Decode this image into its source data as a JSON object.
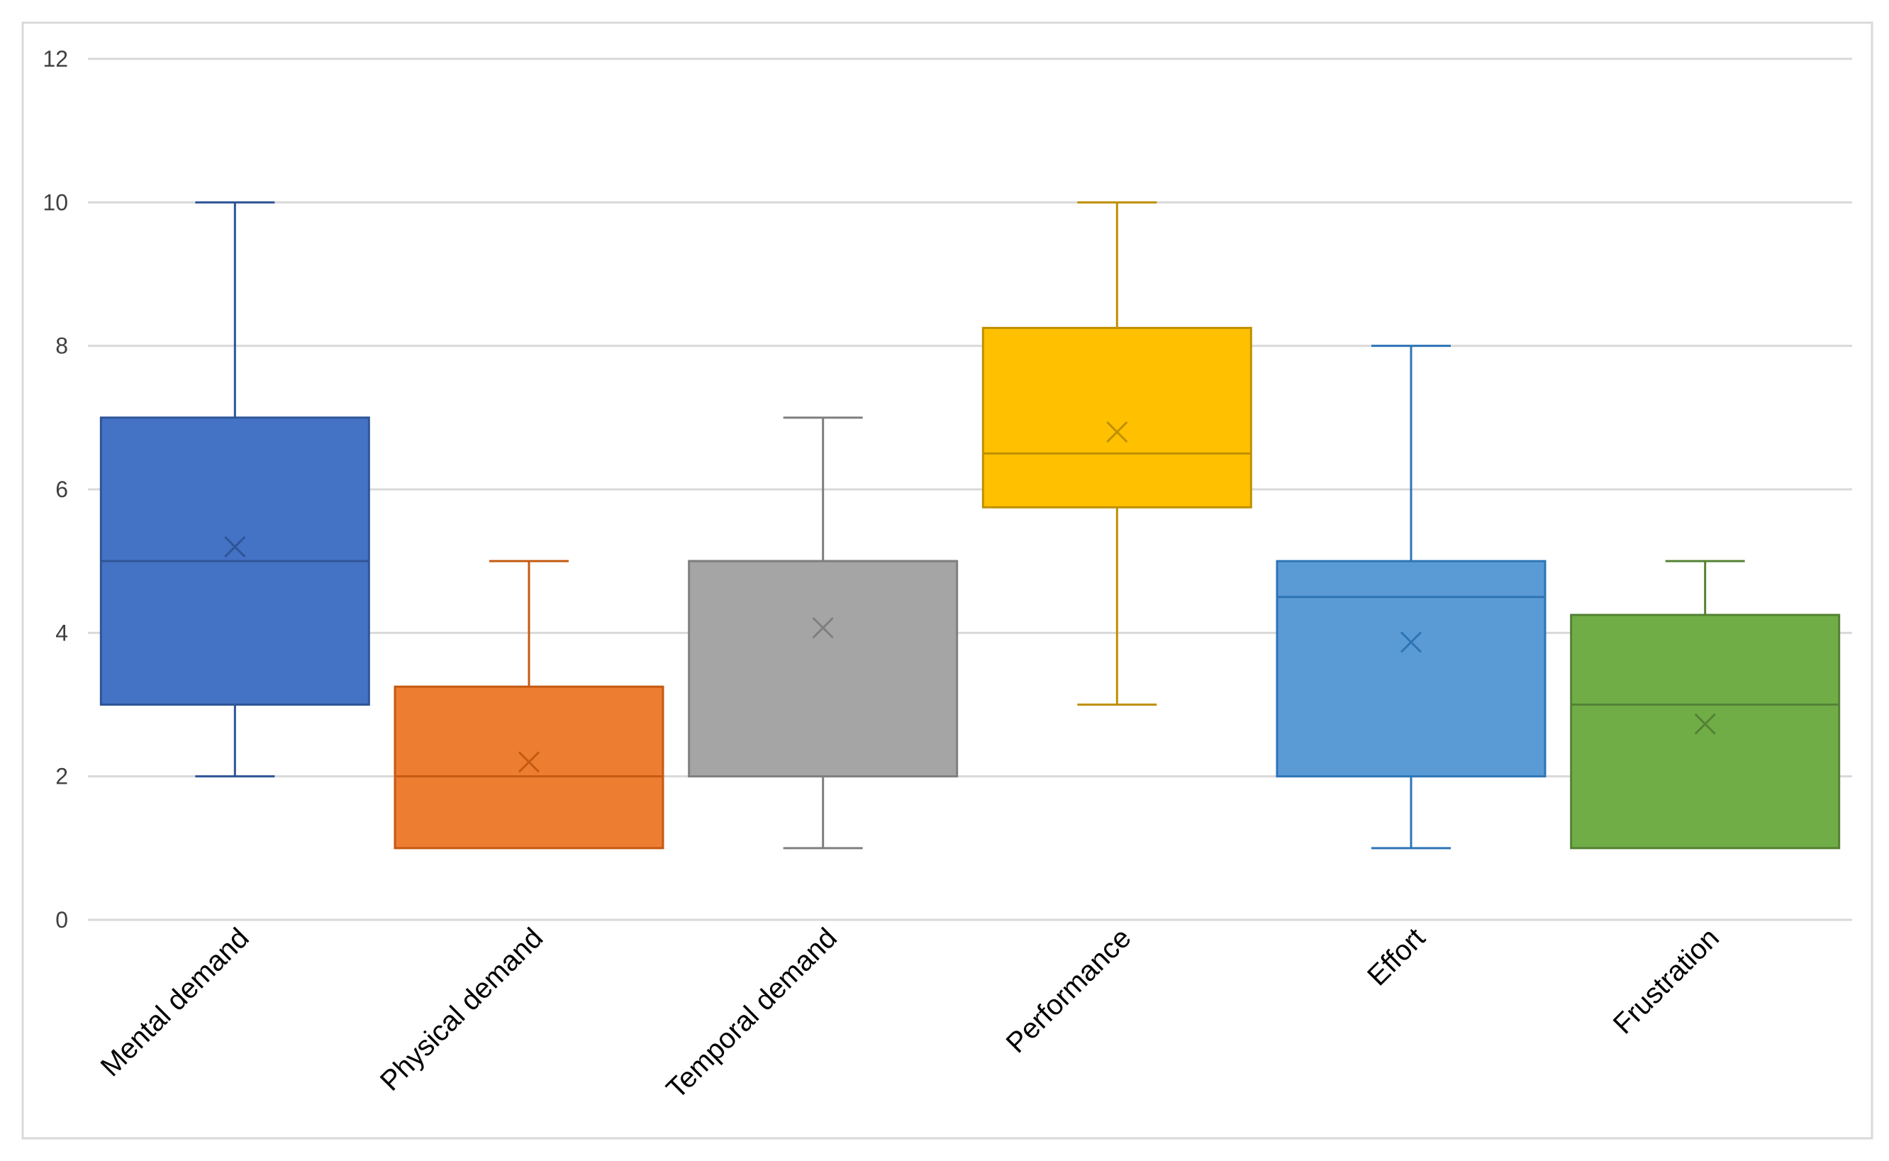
{
  "chart_data": {
    "type": "boxplot",
    "title": "",
    "xlabel": "",
    "ylabel": "",
    "ylim": [
      0,
      12
    ],
    "yticks": [
      0,
      2,
      4,
      6,
      8,
      10,
      12
    ],
    "ytick_labels": [
      "0",
      "2",
      "4",
      "6",
      "8",
      "10",
      "12"
    ],
    "grid": true,
    "legend": "none",
    "categories": [
      "Mental demand",
      "Physical demand",
      "Temporal demand",
      "Performance",
      "Effort",
      "Frustration"
    ],
    "series": [
      {
        "name": "Mental demand",
        "color": "#4472C4",
        "edge": "#2F5597",
        "min": 2,
        "q1": 3,
        "median": 5,
        "q3": 7,
        "max": 10,
        "mean": 5.2
      },
      {
        "name": "Physical demand",
        "color": "#ED7D31",
        "edge": "#C55A11",
        "min": 1,
        "q1": 1,
        "median": 2,
        "q3": 3.25,
        "max": 5,
        "mean": 2.2
      },
      {
        "name": "Temporal demand",
        "color": "#A5A5A5",
        "edge": "#7F7F7F",
        "min": 1,
        "q1": 2,
        "median": 5,
        "q3": 5,
        "max": 7,
        "mean": 4.07
      },
      {
        "name": "Performance",
        "color": "#FFC000",
        "edge": "#BF9000",
        "min": 3,
        "q1": 5.75,
        "median": 6.5,
        "q3": 8.25,
        "max": 10,
        "mean": 6.8
      },
      {
        "name": "Effort",
        "color": "#5B9BD5",
        "edge": "#2E75B6",
        "min": 1,
        "q1": 2,
        "median": 4.5,
        "q3": 5,
        "max": 8,
        "mean": 3.87
      },
      {
        "name": "Frustration",
        "color": "#70AD47",
        "edge": "#548235",
        "min": 1,
        "q1": 1,
        "median": 3,
        "q3": 4.25,
        "max": 5,
        "mean": 2.73
      }
    ]
  }
}
